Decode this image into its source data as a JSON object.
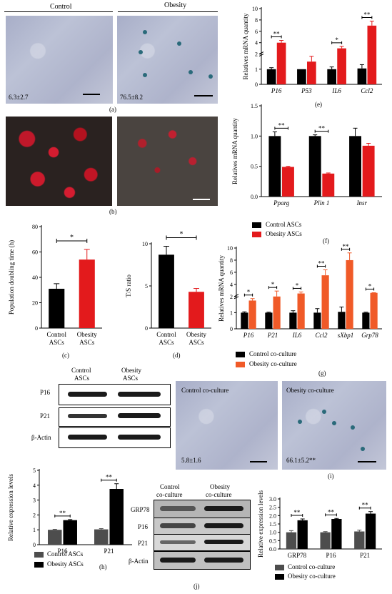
{
  "panel_a": {
    "col_control": "Control",
    "col_obesity": "Obesity",
    "val_control": "6.3±2.7",
    "val_obesity": "76.5±8.2",
    "label": "(a)"
  },
  "panel_b": {
    "label": "(b)"
  },
  "panel_c": {
    "label": "(c)"
  },
  "panel_d": {
    "label": "(d)"
  },
  "panel_e": {
    "label": "(e)"
  },
  "panel_f": {
    "label": "(f)"
  },
  "panel_g": {
    "label": "(g)"
  },
  "panel_h": {
    "label": "(h)",
    "blot_cols": [
      "Control\nASCs",
      "Obesity\nASCs"
    ],
    "blot_col1": "Control",
    "blot_col1b": "ASCs",
    "blot_col2": "Obesity",
    "blot_col2b": "ASCs",
    "rows": [
      "P16",
      "P21",
      "β-Actin"
    ]
  },
  "panel_i": {
    "label": "(i)",
    "title_control": "Control co-culture",
    "title_obesity": "Obesity co-culture",
    "val_control": "5.8±1.6",
    "val_obesity": "66.1±5.2**"
  },
  "panel_j": {
    "label": "(j)",
    "col1": "Control",
    "col1b": "co-culture",
    "col2": "Obesity",
    "col2b": "co-culture",
    "rows": [
      "GRP78",
      "P16",
      "P21",
      "β-Actin"
    ]
  },
  "legend_fc": {
    "control": "Control ASCs",
    "obesity": "Obesity ASCs"
  },
  "legend_g": {
    "control": "Control co-culture",
    "obesity": "Obesity co-culture"
  },
  "legend_h": {
    "control": "Control ASCs",
    "obesity": "Obesity ASCs"
  },
  "legend_j": {
    "control": "Control co-culture",
    "obesity": "Obesity co-culture"
  },
  "colors": {
    "black": "#000000",
    "red": "#e31a1c",
    "orange": "#f05a28",
    "gray": "#4d4d4d"
  },
  "chart_data": [
    {
      "id": "e",
      "type": "bar",
      "ylabel": "Relatives mRNA quantity",
      "categories": [
        "P16",
        "P53",
        "IL6",
        "Ccl2"
      ],
      "yticks": [
        "0",
        "1",
        "2",
        "4",
        "6",
        "8",
        "10"
      ],
      "series": [
        {
          "values": [
            1.0,
            1.0,
            1.0,
            1.05
          ],
          "errors": [
            0.1,
            0.0,
            0.15,
            0.25
          ]
        },
        {
          "values": [
            4.0,
            1.5,
            3.0,
            7.0
          ],
          "errors": [
            0.4,
            0.35,
            0.35,
            0.8
          ]
        }
      ],
      "significance": [
        "**",
        "",
        "*",
        "**"
      ]
    },
    {
      "id": "f",
      "type": "bar",
      "ylabel": "Relatives mRNA quantity",
      "categories": [
        "Pparg",
        "Plin 1",
        "Insr"
      ],
      "ylim": [
        0,
        1.5
      ],
      "yticks": [
        "0.0",
        "0.5",
        "1.0",
        "1.5"
      ],
      "series": [
        {
          "values": [
            1.0,
            1.0,
            1.0
          ],
          "errors": [
            0.07,
            0.02,
            0.13
          ]
        },
        {
          "values": [
            0.49,
            0.38,
            0.84
          ],
          "errors": [
            0.01,
            0.01,
            0.04
          ]
        }
      ],
      "significance": [
        "**",
        "**",
        ""
      ]
    },
    {
      "id": "c",
      "type": "bar",
      "ylabel": "Population doubling time (h)",
      "categories": [
        "Control ASCs",
        "Obesity ASCs"
      ],
      "cat_line1": [
        "Control",
        "Obesity"
      ],
      "cat_line2": [
        "ASCs",
        "ASCs"
      ],
      "ylim": [
        0,
        80
      ],
      "yticks": [
        "0",
        "20",
        "40",
        "60",
        "80"
      ],
      "values": [
        31,
        54
      ],
      "errors": [
        4,
        8
      ],
      "significance": "*"
    },
    {
      "id": "d",
      "type": "bar",
      "ylabel": "T/S ratio",
      "categories": [
        "Control ASCs",
        "Obesity ASCs"
      ],
      "cat_line1": [
        "Control",
        "Obesity"
      ],
      "cat_line2": [
        "ASCs",
        "ASCs"
      ],
      "ylim": [
        0,
        10
      ],
      "yticks": [
        "0",
        "5",
        "10"
      ],
      "values": [
        8.7,
        4.3
      ],
      "errors": [
        1.0,
        0.4
      ],
      "significance": "*"
    },
    {
      "id": "g",
      "type": "bar",
      "ylabel": "Relatives mRNA quantity",
      "categories": [
        "P16",
        "P21",
        "IL6",
        "Ccl2",
        "sXbp1",
        "Grp78"
      ],
      "yticks": [
        "0",
        "1",
        "2",
        "4",
        "6",
        "8",
        "10"
      ],
      "series": [
        {
          "values": [
            1.0,
            1.0,
            1.0,
            1.0,
            1.05,
            1.0
          ],
          "errors": [
            0.05,
            0.03,
            0.12,
            0.25,
            0.3,
            0.03
          ]
        },
        {
          "values": [
            1.75,
            2.0,
            2.5,
            5.5,
            8.0,
            2.6
          ],
          "errors": [
            0.12,
            0.9,
            0.25,
            0.9,
            1.2,
            0.03
          ]
        }
      ],
      "significance": [
        "*",
        "*",
        "*",
        "**",
        "**",
        "*"
      ]
    },
    {
      "id": "h",
      "type": "bar",
      "ylabel": "Relative expression levels",
      "categories": [
        "P16",
        "P21"
      ],
      "ylim": [
        0,
        5
      ],
      "yticks": [
        "0",
        "1",
        "2",
        "3",
        "4",
        "5"
      ],
      "series": [
        {
          "values": [
            1.0,
            1.03
          ],
          "errors": [
            0.03,
            0.05
          ]
        },
        {
          "values": [
            1.65,
            3.75
          ],
          "errors": [
            0.04,
            0.35
          ]
        }
      ],
      "significance": [
        "**",
        "**"
      ]
    },
    {
      "id": "j",
      "type": "bar",
      "ylabel": "Relative expression levels",
      "categories": [
        "GRP78",
        "P16",
        "P21"
      ],
      "ylim": [
        0,
        3.0
      ],
      "yticks": [
        "0.0",
        "0.5",
        "1.0",
        "1.5",
        "2.0",
        "2.5",
        "3.0"
      ],
      "series": [
        {
          "values": [
            1.0,
            1.0,
            1.05
          ],
          "errors": [
            0.1,
            0.04,
            0.08
          ]
        },
        {
          "values": [
            1.72,
            1.8,
            2.12
          ],
          "errors": [
            0.08,
            0.03,
            0.12
          ]
        }
      ],
      "significance": [
        "**",
        "**",
        "**"
      ]
    }
  ]
}
